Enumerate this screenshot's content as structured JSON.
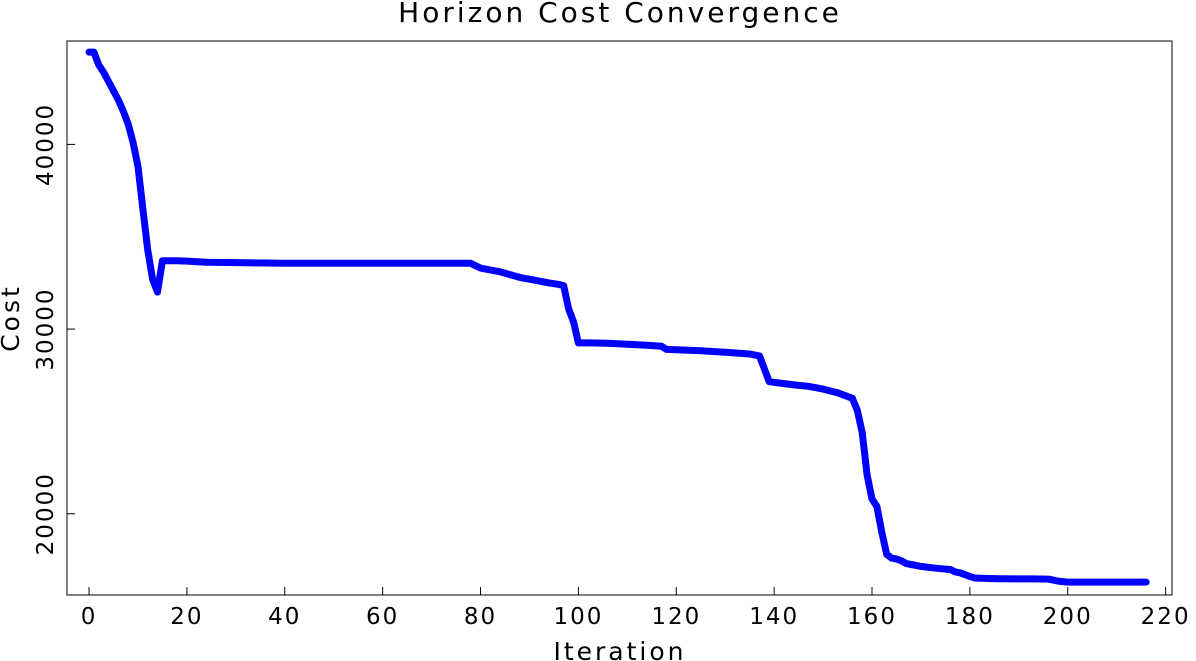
{
  "chart_data": {
    "type": "line",
    "title": "Horizon Cost Convergence",
    "xlabel": "Iteration",
    "ylabel": "Cost",
    "xlim": [
      -4.5,
      221.3
    ],
    "ylim": [
      15600,
      45600
    ],
    "x_ticks": [
      0,
      20,
      40,
      60,
      80,
      100,
      120,
      140,
      160,
      180,
      200,
      220
    ],
    "x_tick_labels": [
      "0",
      "20",
      "40",
      "60",
      "80",
      "100",
      "120",
      "140",
      "160",
      "180",
      "200",
      "220"
    ],
    "y_ticks": [
      20000,
      30000,
      40000
    ],
    "y_tick_labels": [
      "20000",
      "30000",
      "40000"
    ],
    "grid": false,
    "line_color": "#0000ff",
    "series": [
      {
        "x": [
          0,
          1,
          2,
          3,
          4,
          5,
          6,
          7,
          8,
          9,
          10,
          11,
          12,
          13,
          14,
          15,
          16,
          18,
          20,
          24,
          30,
          40,
          50,
          60,
          70,
          78,
          80,
          82,
          84,
          86,
          88,
          90,
          92,
          94,
          96,
          97,
          98,
          99,
          100,
          102,
          106,
          110,
          114,
          117,
          118,
          120,
          125,
          130,
          135,
          137,
          139,
          141,
          145,
          147,
          150,
          153,
          156,
          157,
          158,
          159,
          160,
          161,
          162,
          163,
          164,
          165,
          166,
          167,
          168,
          170,
          173,
          176,
          177,
          178,
          179,
          180,
          181,
          183,
          186,
          190,
          193,
          196,
          198,
          200,
          205,
          210,
          216
        ],
        "y": [
          45000,
          45000,
          44300,
          43900,
          43400,
          42900,
          42400,
          41800,
          41100,
          40100,
          38800,
          36500,
          34300,
          32700,
          32000,
          33700,
          33700,
          33700,
          33680,
          33620,
          33600,
          33560,
          33560,
          33560,
          33560,
          33560,
          33300,
          33200,
          33100,
          32950,
          32800,
          32700,
          32600,
          32500,
          32420,
          32350,
          31100,
          30400,
          29250,
          29250,
          29230,
          29180,
          29120,
          29070,
          28900,
          28880,
          28830,
          28750,
          28650,
          28550,
          27150,
          27080,
          26950,
          26900,
          26750,
          26550,
          26250,
          25600,
          24400,
          22100,
          20800,
          20400,
          19000,
          17800,
          17600,
          17550,
          17450,
          17300,
          17250,
          17150,
          17050,
          16980,
          16850,
          16800,
          16700,
          16600,
          16520,
          16500,
          16480,
          16470,
          16470,
          16460,
          16350,
          16300,
          16300,
          16300,
          16300
        ]
      }
    ]
  }
}
